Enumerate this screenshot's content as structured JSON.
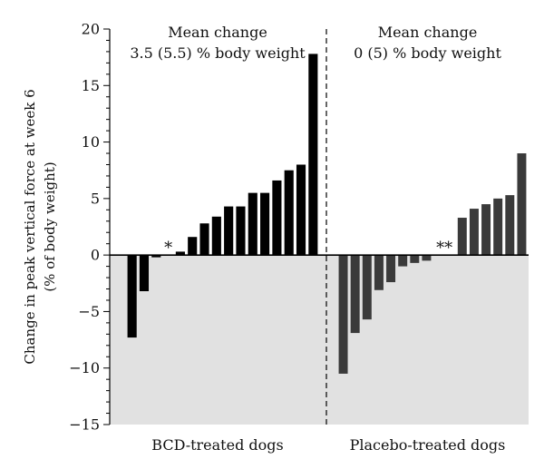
{
  "chart_data": {
    "type": "bar",
    "title": "",
    "xlabel": "",
    "ylabel_lines": [
      "Change in peak vertical force at week 6",
      "(% of body weight)"
    ],
    "ylim": [
      -15,
      20
    ],
    "yticks": [
      -15,
      -10,
      -5,
      0,
      5,
      10,
      15,
      20
    ],
    "grid": false,
    "legend": "none",
    "colors": {
      "bcd": "#000000",
      "placebo": "#3a3a3a",
      "negative_region": "#e1e1e1"
    },
    "groups": [
      {
        "label": "BCD-treated dogs",
        "annotation_lines": [
          "Mean change",
          "3.5 (5.5) % body weight"
        ],
        "values": [
          -7.3,
          -3.2,
          -0.2,
          0,
          0.3,
          1.6,
          2.8,
          3.4,
          4.3,
          4.3,
          5.5,
          5.5,
          6.6,
          7.5,
          8.0,
          17.8
        ],
        "markers": [
          {
            "label": "*",
            "index": 3
          }
        ]
      },
      {
        "label": "Placebo-treated dogs",
        "annotation_lines": [
          "Mean change",
          "0 (5) % body weight"
        ],
        "values": [
          -10.5,
          -6.9,
          -5.7,
          -3.1,
          -2.4,
          -1.0,
          -0.7,
          -0.5,
          0,
          0,
          3.3,
          4.1,
          4.5,
          5.0,
          5.3,
          9.0
        ],
        "markers": [
          {
            "label": "**",
            "index": 8.5
          }
        ]
      }
    ]
  }
}
